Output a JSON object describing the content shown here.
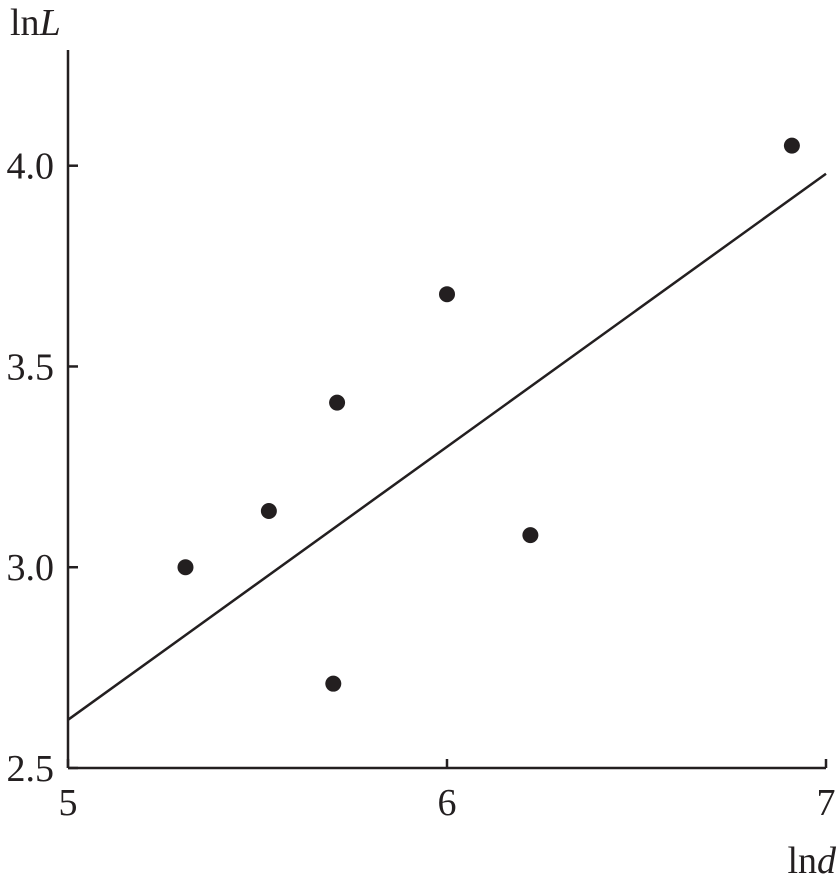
{
  "chart_data": {
    "type": "scatter",
    "title": "",
    "xlabel": "lnd",
    "ylabel": "lnL",
    "xlabel_parts": {
      "prefix": "ln",
      "variable": "d"
    },
    "ylabel_parts": {
      "prefix": "ln",
      "variable": "L"
    },
    "xlim": [
      5,
      7
    ],
    "ylim": [
      2.5,
      4.25
    ],
    "x_ticks": [
      5,
      6,
      7
    ],
    "x_tick_labels": [
      "5",
      "6",
      "7"
    ],
    "y_ticks": [
      2.5,
      3.0,
      3.5,
      4.0
    ],
    "y_tick_labels": [
      "2.5",
      "3.0",
      "3.5",
      "4.0"
    ],
    "grid": false,
    "legend": "none",
    "series": [
      {
        "type": "scatter",
        "points": [
          {
            "x": 5.31,
            "y": 3.0
          },
          {
            "x": 5.53,
            "y": 3.14
          },
          {
            "x": 5.71,
            "y": 3.41
          },
          {
            "x": 5.7,
            "y": 2.71
          },
          {
            "x": 6.0,
            "y": 3.68
          },
          {
            "x": 6.22,
            "y": 3.08
          },
          {
            "x": 6.91,
            "y": 4.05
          }
        ]
      },
      {
        "type": "line",
        "points": [
          {
            "x": 5.0,
            "y": 2.62
          },
          {
            "x": 7.0,
            "y": 3.98
          }
        ]
      }
    ],
    "colors": {
      "ink": "#231f20",
      "background": "#ffffff"
    }
  }
}
